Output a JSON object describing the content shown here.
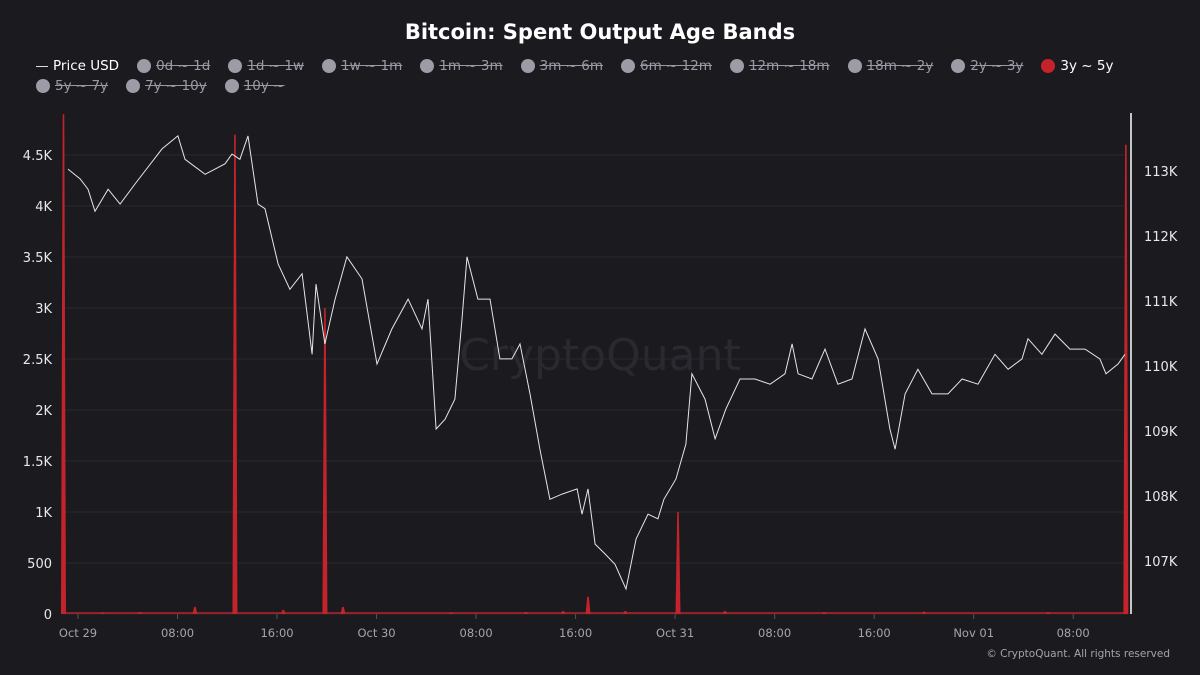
{
  "chart_data": {
    "type": "line+bar",
    "title": "Bitcoin: Spent Output Age Bands",
    "legend": {
      "placement": "top",
      "items": [
        {
          "label": "Price USD",
          "active": true,
          "kind": "line"
        },
        {
          "label": "0d ~ 1d",
          "active": false
        },
        {
          "label": "1d ~ 1w",
          "active": false
        },
        {
          "label": "1w ~ 1m",
          "active": false
        },
        {
          "label": "1m ~ 3m",
          "active": false
        },
        {
          "label": "3m ~ 6m",
          "active": false
        },
        {
          "label": "6m ~ 12m",
          "active": false
        },
        {
          "label": "12m ~ 18m",
          "active": false
        },
        {
          "label": "18m ~ 2y",
          "active": false
        },
        {
          "label": "2y ~ 3y",
          "active": false
        },
        {
          "label": "3y ~ 5y",
          "active": true
        },
        {
          "label": "5y ~ 7y",
          "active": false
        },
        {
          "label": "7y ~ 10y",
          "active": false
        },
        {
          "label": "10y ~",
          "active": false
        }
      ]
    },
    "colors": {
      "price": "#e6e6e6",
      "band": "#c4232b",
      "inactive": "#9c9ba6",
      "background": "#1b1a1f",
      "grid": "#2a2930"
    },
    "x_ticks": [
      "Oct 29",
      "08:00",
      "16:00",
      "Oct 30",
      "08:00",
      "16:00",
      "Oct 31",
      "08:00",
      "16:00",
      "Nov 01",
      "08:00"
    ],
    "xlim": [
      "Oct 28 22:48",
      "Nov 01 12:20"
    ],
    "y_left": {
      "ticks": [
        "0",
        "500",
        "1K",
        "1.5K",
        "2K",
        "2.5K",
        "3K",
        "3.5K",
        "4K",
        "4.5K"
      ],
      "ylim": [
        0,
        4900
      ]
    },
    "y_right": {
      "ticks": [
        "107K",
        "108K",
        "109K",
        "110K",
        "111K",
        "112K",
        "113K"
      ],
      "ylim": [
        106240,
        113240
      ]
    },
    "grid": true,
    "watermark": "CryptoQuant",
    "series": [
      {
        "name": "Price USD",
        "axis": "right",
        "type": "line",
        "points": [
          [
            "Oct 28 23:12",
            113030
          ],
          [
            "Oct 29 00:10",
            112880
          ],
          [
            "Oct 29 00:48",
            112720
          ],
          [
            "Oct 29 01:22",
            112380
          ],
          [
            "Oct 29 02:25",
            112720
          ],
          [
            "Oct 29 03:23",
            112490
          ],
          [
            "Oct 29 04:35",
            112800
          ],
          [
            "Oct 29 05:23",
            113000
          ],
          [
            "Oct 29 06:45",
            113340
          ],
          [
            "Oct 29 08:02",
            113540
          ],
          [
            "Oct 29 08:36",
            113180
          ],
          [
            "Oct 29 10:13",
            112950
          ],
          [
            "Oct 29 11:49",
            113110
          ],
          [
            "Oct 29 12:23",
            113260
          ],
          [
            "Oct 29 13:01",
            113180
          ],
          [
            "Oct 29 13:40",
            113540
          ],
          [
            "Oct 29 14:28",
            112490
          ],
          [
            "Oct 29 15:02",
            112420
          ],
          [
            "Oct 29 16:05",
            111570
          ],
          [
            "Oct 29 17:02",
            111180
          ],
          [
            "Oct 29 18:01",
            111420
          ],
          [
            "Oct 29 18:49",
            110180
          ],
          [
            "Oct 29 19:08",
            111260
          ],
          [
            "Oct 29 19:51",
            110340
          ],
          [
            "Oct 29 20:40",
            111030
          ],
          [
            "Oct 29 21:37",
            111680
          ],
          [
            "Oct 29 22:50",
            111340
          ],
          [
            "Oct 30 00:02",
            110030
          ],
          [
            "Oct 30 01:14",
            110570
          ],
          [
            "Oct 30 02:32",
            111030
          ],
          [
            "Oct 30 03:39",
            110570
          ],
          [
            "Oct 30 04:08",
            111030
          ],
          [
            "Oct 30 04:47",
            109030
          ],
          [
            "Oct 30 05:30",
            109180
          ],
          [
            "Oct 30 06:18",
            109490
          ],
          [
            "Oct 30 06:52",
            110720
          ],
          [
            "Oct 30 07:16",
            111680
          ],
          [
            "Oct 30 08:09",
            111030
          ],
          [
            "Oct 30 09:07",
            111030
          ],
          [
            "Oct 30 09:55",
            110110
          ],
          [
            "Oct 30 10:53",
            110110
          ],
          [
            "Oct 30 11:32",
            110340
          ],
          [
            "Oct 30 12:20",
            109570
          ],
          [
            "Oct 30 13:08",
            108720
          ],
          [
            "Oct 30 13:56",
            107950
          ],
          [
            "Oct 30 14:55",
            108030
          ],
          [
            "Oct 30 16:07",
            108110
          ],
          [
            "Oct 30 16:31",
            107720
          ],
          [
            "Oct 30 17:00",
            108110
          ],
          [
            "Oct 30 17:34",
            107260
          ],
          [
            "Oct 30 18:22",
            107110
          ],
          [
            "Oct 30 19:10",
            106950
          ],
          [
            "Oct 30 20:03",
            106570
          ],
          [
            "Oct 30 20:52",
            107340
          ],
          [
            "Oct 30 21:49",
            107720
          ],
          [
            "Oct 30 22:37",
            107650
          ],
          [
            "Oct 30 23:06",
            107950
          ],
          [
            "Oct 31 00:04",
            108260
          ],
          [
            "Oct 31 00:52",
            108800
          ],
          [
            "Oct 31 01:21",
            109880
          ],
          [
            "Oct 31 02:24",
            109490
          ],
          [
            "Oct 31 03:13",
            108880
          ],
          [
            "Oct 31 04:05",
            109340
          ],
          [
            "Oct 31 05:13",
            109800
          ],
          [
            "Oct 31 06:25",
            109800
          ],
          [
            "Oct 31 07:38",
            109720
          ],
          [
            "Oct 31 08:50",
            109880
          ],
          [
            "Oct 31 09:24",
            110340
          ],
          [
            "Oct 31 09:53",
            109880
          ],
          [
            "Oct 31 11:00",
            109800
          ],
          [
            "Oct 31 12:03",
            110260
          ],
          [
            "Oct 31 13:05",
            109720
          ],
          [
            "Oct 31 14:13",
            109800
          ],
          [
            "Oct 31 15:16",
            110570
          ],
          [
            "Oct 31 16:19",
            110110
          ],
          [
            "Oct 31 17:16",
            109030
          ],
          [
            "Oct 31 17:41",
            108720
          ],
          [
            "Oct 31 18:29",
            109570
          ],
          [
            "Oct 31 19:31",
            109950
          ],
          [
            "Oct 31 20:39",
            109570
          ],
          [
            "Oct 31 21:56",
            109570
          ],
          [
            "Oct 31 23:04",
            109800
          ],
          [
            "Nov 01 00:21",
            109720
          ],
          [
            "Nov 01 01:43",
            110180
          ],
          [
            "Nov 01 02:46",
            109950
          ],
          [
            "Nov 01 03:53",
            110110
          ],
          [
            "Nov 01 04:22",
            110420
          ],
          [
            "Nov 01 05:29",
            110180
          ],
          [
            "Nov 01 06:32",
            110490
          ],
          [
            "Nov 01 07:44",
            110260
          ],
          [
            "Nov 01 08:57",
            110260
          ],
          [
            "Nov 01 10:09",
            110110
          ],
          [
            "Nov 01 10:38",
            109880
          ],
          [
            "Nov 01 11:36",
            110030
          ],
          [
            "Nov 01 12:10",
            110180
          ]
        ]
      },
      {
        "name": "3y ~ 5y",
        "axis": "left",
        "type": "bar",
        "points": [
          [
            "Oct 28 22:50",
            4900
          ],
          [
            "Oct 29 02:00",
            15
          ],
          [
            "Oct 29 05:00",
            20
          ],
          [
            "Oct 29 09:24",
            70
          ],
          [
            "Oct 29 12:37",
            4700
          ],
          [
            "Oct 29 16:30",
            40
          ],
          [
            "Oct 29 19:51",
            3000
          ],
          [
            "Oct 29 21:18",
            70
          ],
          [
            "Oct 30 06:00",
            15
          ],
          [
            "Oct 30 12:00",
            20
          ],
          [
            "Oct 30 15:00",
            30
          ],
          [
            "Oct 30 17:00",
            170
          ],
          [
            "Oct 30 20:00",
            30
          ],
          [
            "Oct 31 00:14",
            1000
          ],
          [
            "Oct 31 04:00",
            30
          ],
          [
            "Oct 31 12:00",
            20
          ],
          [
            "Oct 31 20:00",
            25
          ],
          [
            "Nov 01 06:00",
            20
          ],
          [
            "Nov 01 12:14",
            4600
          ]
        ]
      }
    ]
  },
  "footer": {
    "copyright": "© CryptoQuant. All rights reserved"
  }
}
